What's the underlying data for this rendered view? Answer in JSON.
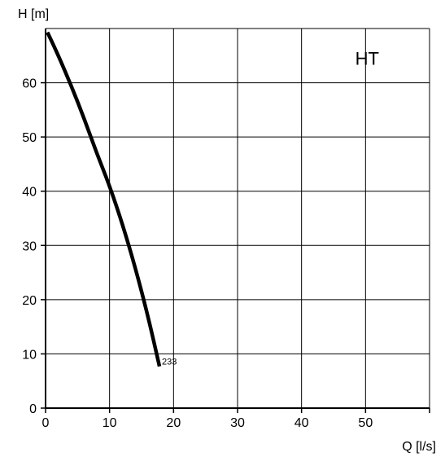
{
  "chart_data": {
    "type": "line",
    "title": "",
    "xlabel": "Q [l/s]",
    "ylabel": "H [m]",
    "xlim": [
      0,
      60
    ],
    "ylim": [
      0,
      70
    ],
    "xticks": [
      0,
      10,
      20,
      30,
      40,
      50
    ],
    "yticks": [
      0,
      10,
      20,
      30,
      40,
      50,
      60
    ],
    "grid": true,
    "annotations": [
      {
        "text": "HT",
        "x": 50,
        "y": 64.5
      }
    ],
    "series": [
      {
        "name": "233",
        "x": [
          0.3,
          2,
          4,
          6,
          8,
          10,
          12,
          14,
          16,
          17.8
        ],
        "y": [
          69.3,
          65,
          59.5,
          53.5,
          47,
          41,
          34,
          26,
          17,
          7.7
        ]
      }
    ]
  }
}
